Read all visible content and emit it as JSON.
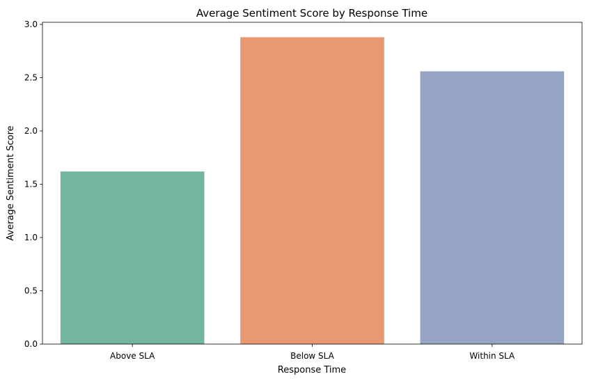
{
  "chart_data": {
    "type": "bar",
    "title": "Average Sentiment Score by Response Time",
    "xlabel": "Response Time",
    "ylabel": "Average Sentiment Score",
    "categories": [
      "Above SLA",
      "Below SLA",
      "Within SLA"
    ],
    "values": [
      1.62,
      2.88,
      2.56
    ],
    "colors": [
      "#73b5a0",
      "#e99874",
      "#95a4c3"
    ],
    "ylim": [
      0,
      3.02
    ],
    "yticks": [
      0.0,
      0.5,
      1.0,
      1.5,
      2.0,
      2.5,
      3.0
    ],
    "ytick_labels": [
      "0.0",
      "0.5",
      "1.0",
      "1.5",
      "2.0",
      "2.5",
      "3.0"
    ],
    "grid": false,
    "legend": "none"
  }
}
